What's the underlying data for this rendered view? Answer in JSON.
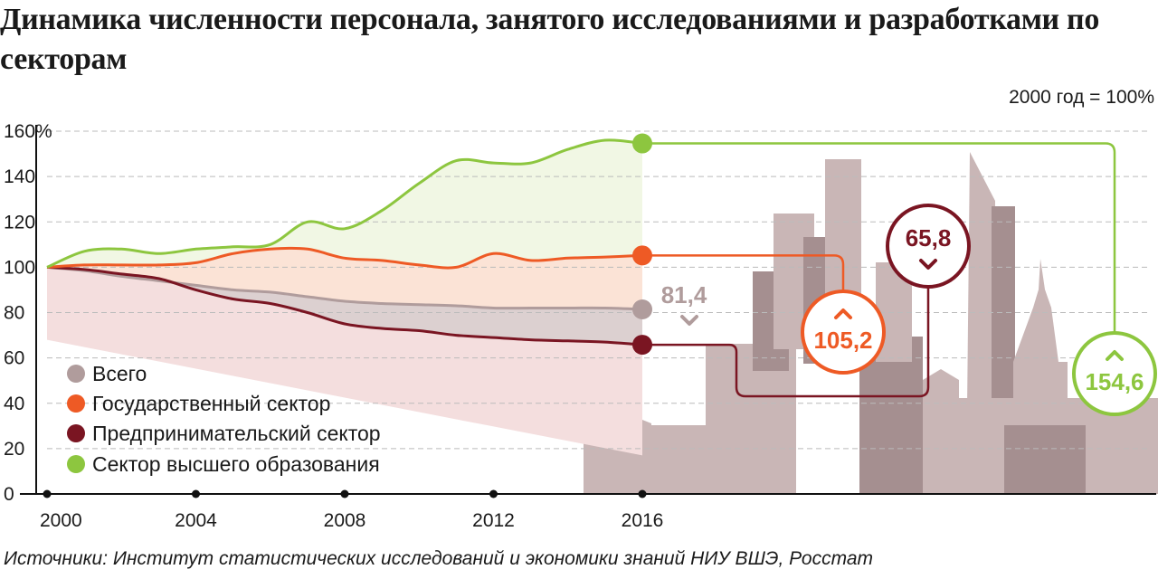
{
  "colors": {
    "total": "#b09c9c",
    "state": "#ee5a25",
    "business": "#7a1522",
    "higher_ed": "#8dc63f",
    "grid": "#bbbbbb",
    "axis": "#111111",
    "skyline": "#c9b6b6",
    "skyline_dark": "#a58f90",
    "higher_fill": "#f1f7e4",
    "state_fill": "#fbe3d6",
    "total_fill": "#dcd0d0",
    "business_fill": "#f4dede"
  },
  "chart_data": {
    "type": "line",
    "title": "Динамика численности персонала, занятого исследованиями и разработками по секторам",
    "subtitle": "2000 год = 100%",
    "source": "Источники: Институт статистических исследований и экономики знаний НИУ ВШЭ, Росстат",
    "xlabel": "",
    "ylabel": "",
    "x": [
      2000,
      2001,
      2002,
      2003,
      2004,
      2005,
      2006,
      2007,
      2008,
      2009,
      2010,
      2011,
      2012,
      2013,
      2014,
      2015,
      2016
    ],
    "xlim": [
      2000,
      2016
    ],
    "ylim": [
      0,
      160
    ],
    "x_ticks": [
      2000,
      2004,
      2008,
      2012,
      2016
    ],
    "x_tick_labels": [
      "2000",
      "2004",
      "2008",
      "2012",
      "2016"
    ],
    "y_ticks": [
      0,
      20,
      40,
      60,
      80,
      100,
      120,
      140,
      160
    ],
    "y_tick_labels": [
      "0",
      "20",
      "40",
      "60",
      "80",
      "100",
      "120",
      "140",
      "160%"
    ],
    "grid": true,
    "legend_position": "bottom-left",
    "series": [
      {
        "key": "total",
        "name": "Всего",
        "values": [
          100,
          98.5,
          96,
          94,
          92,
          90,
          89,
          87,
          85,
          84,
          83.5,
          83,
          82,
          82,
          82,
          82,
          81.4
        ],
        "end_label": "81,4",
        "end_direction": "down"
      },
      {
        "key": "state",
        "name": "Государственный сектор",
        "values": [
          100,
          101,
          101,
          101,
          102,
          106,
          108,
          108,
          104,
          103,
          101,
          100,
          106,
          103,
          104,
          104.5,
          105.2
        ],
        "end_label": "105,2",
        "end_direction": "up"
      },
      {
        "key": "business",
        "name": "Предпринимательский сектор",
        "values": [
          100,
          99,
          97,
          95,
          90,
          86,
          84,
          80,
          75,
          73,
          72,
          70,
          69,
          68,
          67.5,
          67,
          65.8
        ],
        "end_label": "65,8",
        "end_direction": "down"
      },
      {
        "key": "higher_ed",
        "name": "Сектор высшего образования",
        "values": [
          100,
          107,
          108,
          106,
          108,
          109,
          110,
          120,
          117,
          125,
          137,
          147,
          146,
          146,
          152,
          156,
          154.6
        ],
        "end_label": "154,6",
        "end_direction": "up"
      }
    ]
  }
}
